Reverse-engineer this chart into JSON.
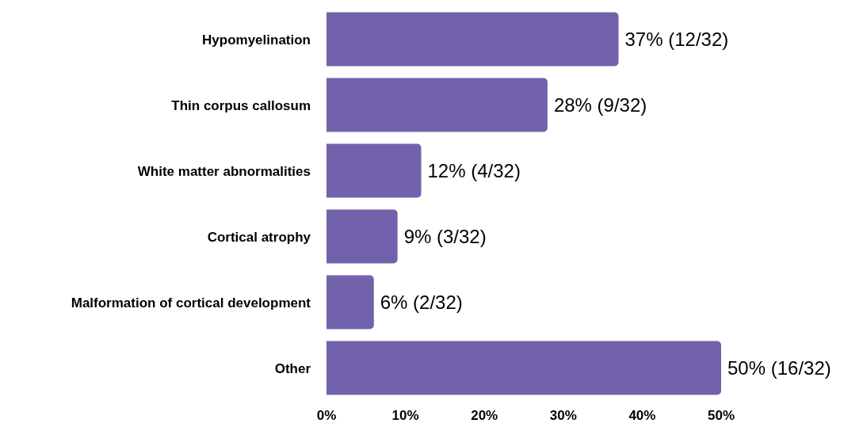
{
  "chart_data": {
    "type": "bar",
    "orientation": "horizontal",
    "categories": [
      "Hypomyelination",
      "Thin corpus callosum",
      "White matter abnormalities",
      "Cortical atrophy",
      "Malformation of cortical development",
      "Other"
    ],
    "values": [
      37,
      28,
      12,
      9,
      6,
      50
    ],
    "value_labels": [
      "37% (12/32)",
      "28% (9/32)",
      "12% (4/32)",
      "9% (3/32)",
      "6% (2/32)",
      "50% (16/32)"
    ],
    "color": "#7262ab",
    "xlim": [
      0,
      50
    ],
    "xticks": [
      {
        "value": 0,
        "label": "0%"
      },
      {
        "value": 10,
        "label": "10%"
      },
      {
        "value": 20,
        "label": "20%"
      },
      {
        "value": 30,
        "label": "30%"
      },
      {
        "value": 40,
        "label": "40%"
      },
      {
        "value": 50,
        "label": "50%"
      }
    ]
  }
}
